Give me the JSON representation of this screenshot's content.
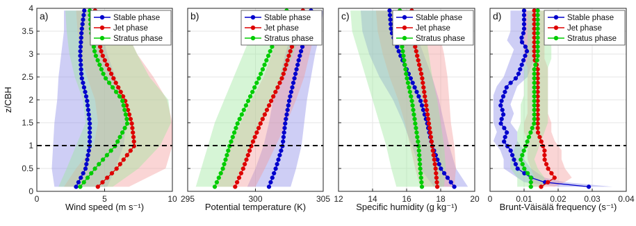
{
  "chart_data": [
    {
      "type": "line",
      "panel_label": "a)",
      "xlabel": "Wind speed (m s⁻¹)",
      "ylabel": "z/CBH",
      "xlim": [
        0,
        10
      ],
      "ylim": [
        0,
        4
      ],
      "xticks": [
        0,
        5,
        10
      ],
      "yticks": [
        0,
        0.5,
        1,
        1.5,
        2,
        2.5,
        3,
        3.5,
        4
      ],
      "xtick_labels": [
        "0",
        "5",
        "10"
      ],
      "ytick_labels": [
        "0",
        "0.5",
        "1",
        "1.5",
        "2",
        "2.5",
        "3",
        "3.5",
        "4"
      ],
      "grid": true,
      "legend": "top-right",
      "reference_line_y": 1,
      "series": [
        {
          "name": "Stable phase",
          "color": "#0000cc",
          "band_color": "#8a8ae6",
          "y": [
            0.1,
            0.5,
            1.0,
            1.5,
            2.0,
            2.5,
            3.0,
            3.5,
            3.95
          ],
          "x": [
            2.9,
            3.6,
            3.9,
            3.9,
            3.7,
            3.3,
            3.2,
            3.3,
            3.5
          ],
          "lo": [
            1.3,
            1.1,
            1.2,
            1.3,
            1.5,
            1.6,
            1.8,
            2.0,
            2.0
          ],
          "hi": [
            5.2,
            5.8,
            6.4,
            6.6,
            6.3,
            5.8,
            5.2,
            4.8,
            4.7
          ]
        },
        {
          "name": "Jet phase",
          "color": "#dd0000",
          "band_color": "#f39a9a",
          "y": [
            0.1,
            0.5,
            1.0,
            1.5,
            2.0,
            2.5,
            3.0,
            3.5,
            3.95
          ],
          "x": [
            4.5,
            5.9,
            7.2,
            7.0,
            6.5,
            5.6,
            4.8,
            4.4,
            4.3
          ],
          "lo": [
            2.0,
            2.9,
            4.2,
            4.5,
            4.3,
            3.7,
            3.2,
            3.0,
            2.9
          ],
          "hi": [
            6.8,
            9.5,
            10.0,
            10.0,
            9.6,
            8.6,
            7.4,
            6.6,
            6.4
          ]
        },
        {
          "name": "Stratus phase",
          "color": "#00cc00",
          "band_color": "#9ee89e",
          "y": [
            0.1,
            0.5,
            1.0,
            1.5,
            2.0,
            2.5,
            3.0,
            3.5,
            3.95
          ],
          "x": [
            3.2,
            4.3,
            5.8,
            6.7,
            6.3,
            5.0,
            4.3,
            4.0,
            3.9
          ],
          "lo": [
            1.6,
            2.2,
            2.9,
            3.6,
            3.4,
            2.8,
            2.4,
            2.2,
            2.1
          ],
          "hi": [
            5.6,
            7.5,
            9.1,
            9.9,
            9.7,
            8.3,
            7.4,
            6.6,
            6.3
          ]
        }
      ]
    },
    {
      "type": "line",
      "panel_label": "b)",
      "xlabel": "Potential temperature (K)",
      "ylabel": "",
      "xlim": [
        295,
        305
      ],
      "ylim": [
        0,
        4
      ],
      "xticks": [
        295,
        300,
        305
      ],
      "yticks": [
        0,
        0.5,
        1,
        1.5,
        2,
        2.5,
        3,
        3.5,
        4
      ],
      "xtick_labels": [
        "295",
        "300",
        "305"
      ],
      "ytick_labels": [],
      "grid": true,
      "legend": "top-right",
      "reference_line_y": 1,
      "series": [
        {
          "name": "Stable phase",
          "color": "#0000cc",
          "band_color": "#8a8ae6",
          "y": [
            0.1,
            0.5,
            1.0,
            1.5,
            2.0,
            2.5,
            3.0,
            3.5,
            3.95
          ],
          "x": [
            301.0,
            301.5,
            302.0,
            302.2,
            302.5,
            302.9,
            303.3,
            303.8,
            304.1
          ],
          "lo": [
            299.4,
            300.0,
            300.6,
            301.0,
            301.3,
            301.8,
            302.2,
            302.7,
            303.0
          ],
          "hi": [
            302.6,
            303.0,
            303.4,
            303.6,
            303.8,
            304.1,
            304.4,
            304.8,
            305.0
          ]
        },
        {
          "name": "Jet phase",
          "color": "#dd0000",
          "band_color": "#f39a9a",
          "y": [
            0.1,
            0.5,
            1.0,
            1.5,
            2.0,
            2.5,
            3.0,
            3.5,
            3.95
          ],
          "x": [
            298.5,
            299.1,
            299.7,
            300.4,
            301.2,
            302.0,
            302.5,
            303.1,
            303.5
          ],
          "lo": [
            297.0,
            297.5,
            298.1,
            298.9,
            299.7,
            300.6,
            301.2,
            301.8,
            302.2
          ],
          "hi": [
            300.0,
            300.7,
            301.5,
            302.3,
            303.0,
            303.6,
            304.0,
            304.4,
            304.7
          ]
        },
        {
          "name": "Stratus phase",
          "color": "#00cc00",
          "band_color": "#9ee89e",
          "y": [
            0.1,
            0.5,
            1.0,
            1.5,
            2.0,
            2.5,
            3.0,
            3.5,
            3.95
          ],
          "x": [
            297.0,
            297.6,
            298.1,
            298.7,
            299.5,
            300.3,
            301.0,
            301.7,
            302.3
          ],
          "lo": [
            295.6,
            296.0,
            296.5,
            297.0,
            297.7,
            298.4,
            299.1,
            299.8,
            300.4
          ],
          "hi": [
            298.3,
            299.0,
            299.7,
            300.5,
            301.3,
            302.1,
            302.8,
            303.4,
            303.8
          ]
        }
      ]
    },
    {
      "type": "line",
      "panel_label": "c)",
      "xlabel": "Specific humidity (g kg⁻¹)",
      "ylabel": "",
      "xlim": [
        12,
        20
      ],
      "ylim": [
        0,
        4
      ],
      "xticks": [
        12,
        14,
        16,
        18,
        20
      ],
      "yticks": [
        0,
        0.5,
        1,
        1.5,
        2,
        2.5,
        3,
        3.5,
        4
      ],
      "xtick_labels": [
        "12",
        "14",
        "16",
        "18",
        "20"
      ],
      "ytick_labels": [],
      "grid": true,
      "legend": "top-right",
      "reference_line_y": 1,
      "series": [
        {
          "name": "Stable phase",
          "color": "#0000cc",
          "band_color": "#8a8ae6",
          "y": [
            0.1,
            0.5,
            1.0,
            1.5,
            2.0,
            2.5,
            3.0,
            3.5,
            3.95
          ],
          "x": [
            18.8,
            18.0,
            17.5,
            17.2,
            16.8,
            16.2,
            15.6,
            15.1,
            15.0
          ],
          "lo": [
            17.6,
            16.8,
            16.3,
            15.8,
            15.2,
            14.4,
            13.8,
            13.4,
            13.3
          ],
          "hi": [
            19.6,
            18.9,
            18.5,
            18.2,
            17.9,
            17.5,
            17.0,
            16.5,
            16.3
          ]
        },
        {
          "name": "Jet phase",
          "color": "#dd0000",
          "band_color": "#f39a9a",
          "y": [
            0.1,
            0.5,
            1.0,
            1.5,
            2.0,
            2.5,
            3.0,
            3.5,
            3.95
          ],
          "x": [
            17.8,
            17.7,
            17.5,
            17.3,
            17.1,
            16.9,
            16.6,
            16.3,
            16.3
          ],
          "lo": [
            16.8,
            16.5,
            16.2,
            15.9,
            15.5,
            15.0,
            14.6,
            14.3,
            14.2
          ],
          "hi": [
            18.8,
            18.9,
            18.8,
            18.6,
            18.5,
            18.4,
            18.2,
            17.9,
            17.8
          ]
        },
        {
          "name": "Stratus phase",
          "color": "#00cc00",
          "band_color": "#9ee89e",
          "y": [
            0.1,
            0.5,
            1.0,
            1.5,
            2.0,
            2.5,
            3.0,
            3.5,
            3.95
          ],
          "x": [
            16.9,
            16.8,
            16.7,
            16.5,
            16.3,
            16.0,
            15.8,
            15.6,
            15.6
          ],
          "lo": [
            15.4,
            15.1,
            14.8,
            14.4,
            14.0,
            13.6,
            13.2,
            12.8,
            12.7
          ],
          "hi": [
            18.2,
            18.3,
            18.2,
            18.0,
            17.8,
            17.5,
            17.3,
            17.1,
            17.0
          ]
        }
      ]
    },
    {
      "type": "line",
      "panel_label": "d)",
      "xlabel": "Brunt-Väisälä frequency (s⁻¹)",
      "ylabel": "",
      "xlim": [
        0,
        0.04
      ],
      "ylim": [
        0,
        4
      ],
      "xticks": [
        0,
        0.01,
        0.02,
        0.03,
        0.04
      ],
      "yticks": [
        0,
        0.5,
        1,
        1.5,
        2,
        2.5,
        3,
        3.5,
        4
      ],
      "xtick_labels": [
        "0",
        "0.01",
        "0.02",
        "0.03",
        "0.04"
      ],
      "ytick_labels": [],
      "grid": true,
      "legend": "top-right",
      "reference_line_y": 1,
      "series": [
        {
          "name": "Stable phase",
          "color": "#0000cc",
          "band_color": "#8a8ae6",
          "y": [
            0.1,
            0.2,
            0.3,
            0.5,
            0.7,
            0.9,
            1.1,
            1.3,
            1.5,
            1.7,
            1.9,
            2.1,
            2.3,
            2.5,
            2.7,
            2.9,
            3.1,
            3.3,
            3.5,
            3.7,
            3.95
          ],
          "x": [
            0.029,
            0.016,
            0.012,
            0.008,
            0.007,
            0.006,
            0.004,
            0.005,
            0.003,
            0.004,
            0.003,
            0.004,
            0.005,
            0.008,
            0.009,
            0.01,
            0.011,
            0.009,
            0.01,
            0.01,
            0.01
          ],
          "lo": [
            0.02,
            0.01,
            0.008,
            0.004,
            0.004,
            0.003,
            0.001,
            0.002,
            0.001,
            0.001,
            0.001,
            0.001,
            0.002,
            0.004,
            0.005,
            0.006,
            0.007,
            0.005,
            0.006,
            0.006,
            0.006
          ],
          "hi": [
            0.036,
            0.022,
            0.016,
            0.012,
            0.01,
            0.01,
            0.008,
            0.008,
            0.006,
            0.007,
            0.006,
            0.007,
            0.008,
            0.011,
            0.012,
            0.013,
            0.014,
            0.012,
            0.013,
            0.014,
            0.014
          ]
        },
        {
          "name": "Jet phase",
          "color": "#dd0000",
          "band_color": "#f39a9a",
          "y": [
            0.1,
            0.2,
            0.3,
            0.5,
            0.7,
            0.9,
            1.1,
            1.3,
            1.5,
            1.7,
            1.9,
            2.1,
            2.3,
            2.5,
            2.7,
            2.9,
            3.1,
            3.3,
            3.5,
            3.7,
            3.95
          ],
          "x": [
            0.015,
            0.017,
            0.019,
            0.017,
            0.016,
            0.016,
            0.015,
            0.014,
            0.014,
            0.014,
            0.014,
            0.014,
            0.014,
            0.014,
            0.014,
            0.013,
            0.013,
            0.013,
            0.013,
            0.013,
            0.013
          ],
          "lo": [
            0.011,
            0.012,
            0.013,
            0.012,
            0.011,
            0.011,
            0.011,
            0.01,
            0.01,
            0.011,
            0.011,
            0.011,
            0.011,
            0.011,
            0.011,
            0.01,
            0.01,
            0.01,
            0.01,
            0.01,
            0.01
          ],
          "hi": [
            0.019,
            0.022,
            0.024,
            0.022,
            0.021,
            0.021,
            0.019,
            0.018,
            0.018,
            0.017,
            0.017,
            0.017,
            0.017,
            0.017,
            0.017,
            0.016,
            0.016,
            0.016,
            0.016,
            0.016,
            0.016
          ]
        },
        {
          "name": "Stratus phase",
          "color": "#00cc00",
          "band_color": "#9ee89e",
          "y": [
            0.1,
            0.2,
            0.3,
            0.5,
            0.7,
            0.9,
            1.1,
            1.3,
            1.5,
            1.7,
            1.9,
            2.1,
            2.3,
            2.5,
            2.7,
            2.9,
            3.1,
            3.3,
            3.5,
            3.7,
            3.95
          ],
          "x": [
            0.012,
            0.012,
            0.012,
            0.01,
            0.009,
            0.01,
            0.011,
            0.012,
            0.013,
            0.013,
            0.013,
            0.013,
            0.013,
            0.013,
            0.013,
            0.014,
            0.014,
            0.014,
            0.014,
            0.014,
            0.014
          ],
          "lo": [
            0.008,
            0.008,
            0.008,
            0.006,
            0.006,
            0.007,
            0.008,
            0.008,
            0.009,
            0.009,
            0.009,
            0.01,
            0.01,
            0.01,
            0.01,
            0.011,
            0.011,
            0.011,
            0.011,
            0.011,
            0.011
          ],
          "hi": [
            0.016,
            0.016,
            0.016,
            0.014,
            0.013,
            0.014,
            0.015,
            0.016,
            0.017,
            0.017,
            0.017,
            0.017,
            0.017,
            0.017,
            0.017,
            0.018,
            0.018,
            0.018,
            0.017,
            0.017,
            0.017
          ]
        }
      ]
    }
  ]
}
